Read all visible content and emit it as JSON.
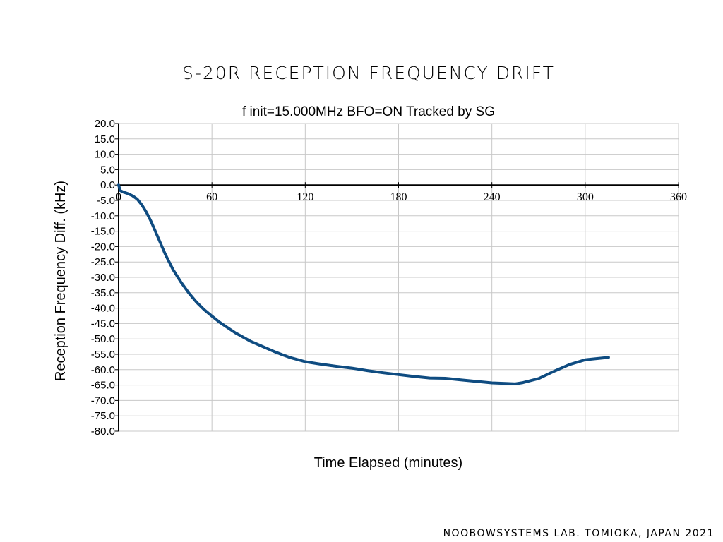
{
  "footer": {
    "credit": "NOOBOWSYSTEMS LAB. TOMIOKA, JAPAN 2021"
  },
  "colors": {
    "series": "#0f4c81",
    "grid": "#c8c8c8",
    "zero_line": "#000000"
  },
  "chart_data": {
    "type": "line",
    "title": "S-20R RECEPTION FREQUENCY DRIFT",
    "subtitle": "f init=15.000MHz BFO=ON Tracked by SG",
    "xlabel": "Time Elapsed (minutes)",
    "ylabel": "Reception Frequency Diff.  (kHz)",
    "xlim": [
      0,
      360
    ],
    "ylim": [
      -80,
      20
    ],
    "xticks": [
      0,
      60,
      120,
      180,
      240,
      300,
      360
    ],
    "xtick_labels": [
      "0",
      "60",
      "120",
      "180",
      "240",
      "300",
      "360"
    ],
    "yticks": [
      20,
      15,
      10,
      5,
      0,
      -5,
      -10,
      -15,
      -20,
      -25,
      -30,
      -35,
      -40,
      -45,
      -50,
      -55,
      -60,
      -65,
      -70,
      -75,
      -80
    ],
    "ytick_labels": [
      "20.0",
      "15.0",
      "10.0",
      "5.0",
      "0.0",
      "-5.0",
      "-10.0",
      "-15.0",
      "-20.0",
      "-25.0",
      "-30.0",
      "-35.0",
      "-40.0",
      "-45.0",
      "-50.0",
      "-55.0",
      "-60.0",
      "-65.0",
      "-70.0",
      "-75.0",
      "-80.0"
    ],
    "grid": true,
    "legend": "none",
    "series": [
      {
        "x": [
          0,
          1,
          3,
          6,
          9,
          12,
          15,
          18,
          21,
          24,
          27,
          30,
          35,
          40,
          45,
          50,
          55,
          60,
          65,
          70,
          75,
          80,
          85,
          90,
          95,
          100,
          105,
          110,
          115,
          120,
          130,
          140,
          150,
          160,
          170,
          180,
          190,
          200,
          210,
          220,
          230,
          240,
          250,
          255,
          260,
          270,
          280,
          290,
          300,
          315
        ],
        "y": [
          0,
          -1.8,
          -2.3,
          -2.8,
          -3.5,
          -4.6,
          -6.5,
          -9.0,
          -12.0,
          -15.5,
          -19.0,
          -22.5,
          -27.5,
          -31.5,
          -35.0,
          -38.0,
          -40.5,
          -42.6,
          -44.6,
          -46.3,
          -48.0,
          -49.4,
          -50.8,
          -51.9,
          -53.0,
          -54.1,
          -55.1,
          -56.0,
          -56.7,
          -57.4,
          -58.2,
          -58.9,
          -59.5,
          -60.3,
          -61.0,
          -61.6,
          -62.2,
          -62.7,
          -62.8,
          -63.3,
          -63.8,
          -64.3,
          -64.5,
          -64.6,
          -64.2,
          -62.9,
          -60.5,
          -58.3,
          -56.8,
          -56.0
        ]
      }
    ]
  }
}
